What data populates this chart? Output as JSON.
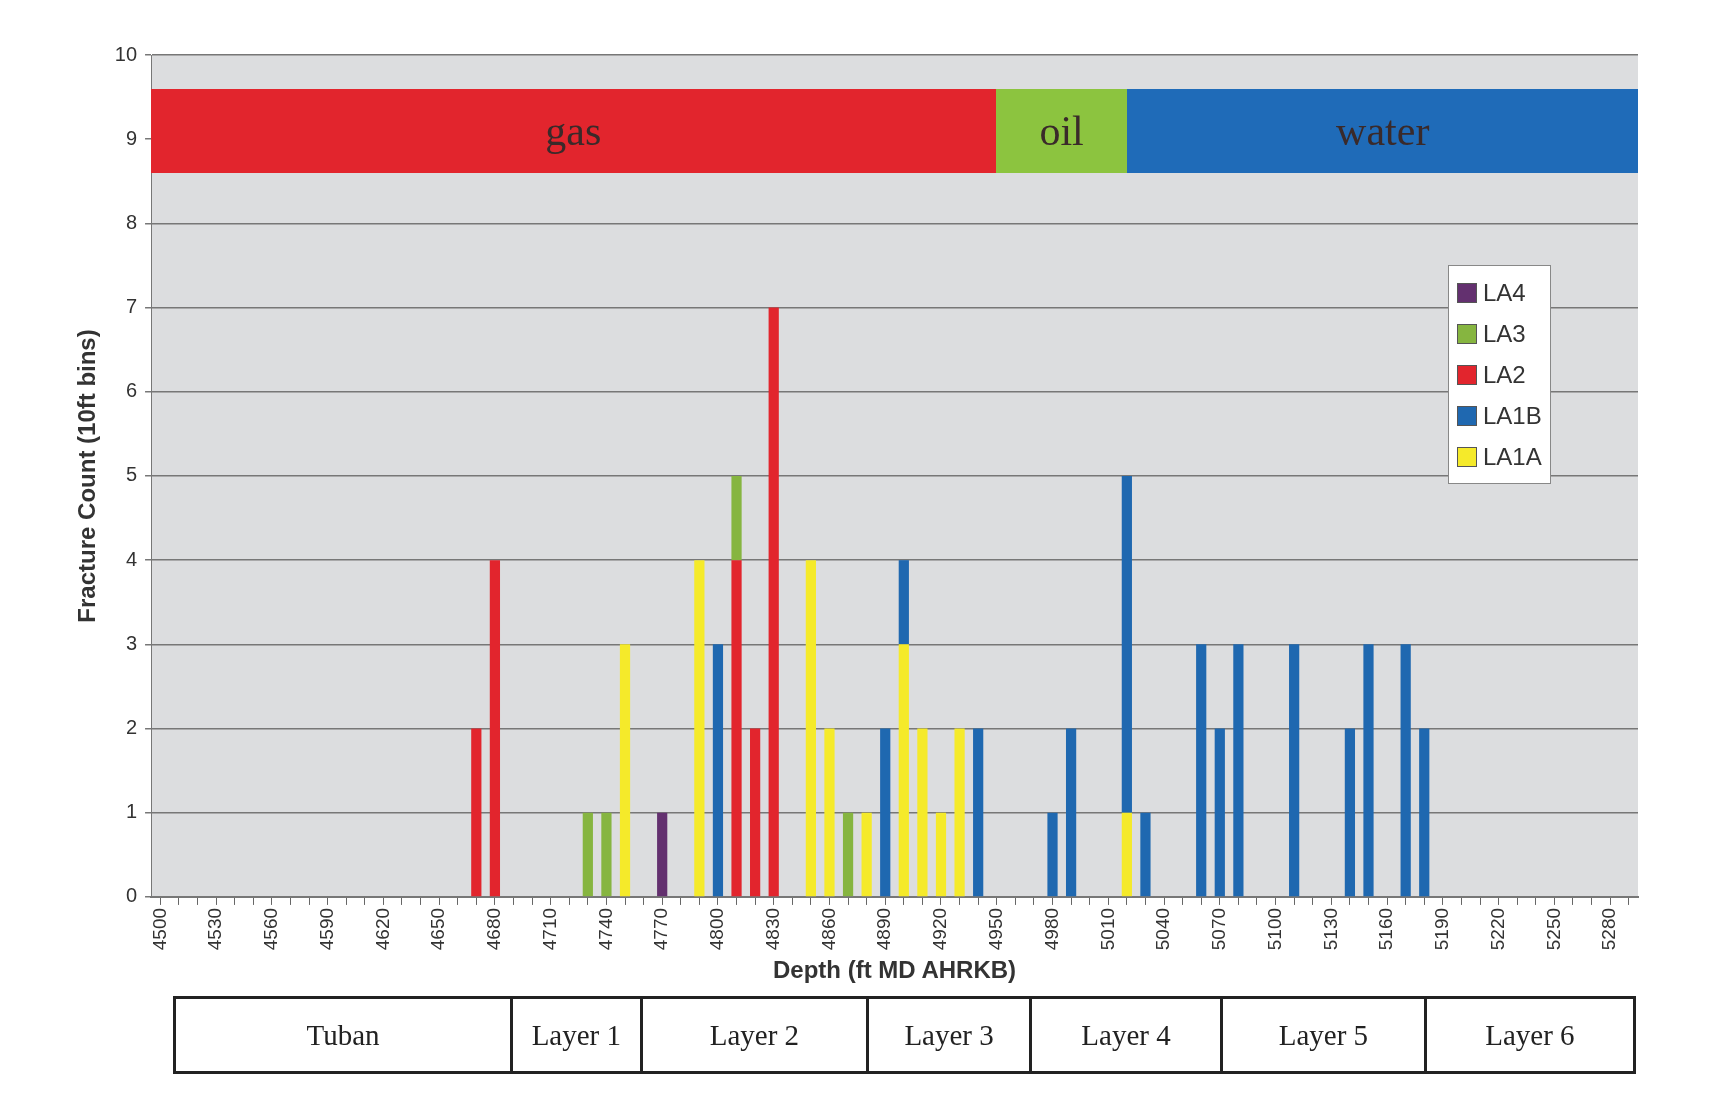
{
  "chart_data": {
    "type": "bar",
    "stacked": true,
    "xlabel": "Depth (ft MD AHRKB)",
    "ylabel": "Fracture Count (10ft bins)",
    "categories": [
      "4500",
      null,
      null,
      "4530",
      null,
      null,
      "4560",
      null,
      null,
      "4590",
      null,
      null,
      "4620",
      null,
      null,
      "4650",
      null,
      null,
      "4680",
      null,
      null,
      "4710",
      null,
      null,
      "4740",
      null,
      null,
      "4770",
      null,
      null,
      "4800",
      null,
      null,
      "4830",
      null,
      null,
      "4860",
      null,
      null,
      "4890",
      null,
      null,
      "4920",
      null,
      null,
      "4950",
      null,
      null,
      "4980",
      null,
      null,
      "5010",
      null,
      null,
      "5040",
      null,
      null,
      "5070",
      null,
      null,
      "5100",
      null,
      null,
      "5130",
      null,
      null,
      "5160",
      null,
      null,
      "5190",
      null,
      null,
      "5220",
      null,
      null,
      "5250",
      null,
      null,
      "5280",
      null
    ],
    "series": [
      {
        "name": "LA1A",
        "color": "#f5ea2a",
        "values": [
          null,
          null,
          null,
          null,
          null,
          null,
          null,
          null,
          null,
          null,
          null,
          null,
          null,
          null,
          null,
          null,
          null,
          null,
          null,
          null,
          null,
          null,
          null,
          null,
          null,
          3,
          null,
          null,
          null,
          4,
          null,
          null,
          null,
          null,
          null,
          4,
          2,
          null,
          1,
          null,
          3,
          2,
          1,
          2,
          null,
          null,
          null,
          null,
          null,
          null,
          null,
          null,
          1,
          null,
          null,
          null,
          null,
          null,
          null,
          null,
          null,
          null,
          null,
          null,
          null,
          null,
          null,
          null,
          null,
          null,
          null,
          null,
          null,
          null,
          null,
          null,
          null,
          null,
          null,
          null
        ]
      },
      {
        "name": "LA1B",
        "color": "#1f68b0",
        "values": [
          null,
          null,
          null,
          null,
          null,
          null,
          null,
          null,
          null,
          null,
          null,
          null,
          null,
          null,
          null,
          null,
          null,
          null,
          null,
          null,
          null,
          null,
          null,
          null,
          null,
          null,
          null,
          null,
          null,
          null,
          3,
          null,
          null,
          null,
          null,
          null,
          null,
          null,
          null,
          2,
          1,
          null,
          null,
          null,
          2,
          null,
          null,
          null,
          1,
          2,
          null,
          null,
          4,
          1,
          null,
          null,
          3,
          2,
          3,
          null,
          null,
          3,
          null,
          null,
          2,
          3,
          null,
          3,
          2,
          null,
          null,
          null,
          null,
          null,
          null,
          null,
          null,
          null,
          null,
          null
        ]
      },
      {
        "name": "LA2",
        "color": "#e2252d",
        "values": [
          null,
          null,
          null,
          null,
          null,
          null,
          null,
          null,
          null,
          null,
          null,
          null,
          null,
          null,
          null,
          null,
          null,
          2,
          4,
          null,
          null,
          null,
          null,
          null,
          null,
          null,
          null,
          null,
          null,
          null,
          null,
          4,
          2,
          7,
          null,
          null,
          null,
          null,
          null,
          null,
          null,
          null,
          null,
          null,
          null,
          null,
          null,
          null,
          null,
          null,
          null,
          null,
          null,
          null,
          null,
          null,
          null,
          null,
          null,
          null,
          null,
          null,
          null,
          null,
          null,
          null,
          null,
          null,
          null,
          null,
          null,
          null,
          null,
          null,
          null,
          null,
          null,
          null,
          null,
          null
        ]
      },
      {
        "name": "LA3",
        "color": "#86b540",
        "values": [
          null,
          null,
          null,
          null,
          null,
          null,
          null,
          null,
          null,
          null,
          null,
          null,
          null,
          null,
          null,
          null,
          null,
          null,
          null,
          null,
          null,
          null,
          null,
          1,
          1,
          null,
          null,
          null,
          null,
          null,
          null,
          1,
          null,
          null,
          null,
          null,
          null,
          1,
          null,
          null,
          null,
          null,
          null,
          null,
          null,
          null,
          null,
          null,
          null,
          null,
          null,
          null,
          null,
          null,
          null,
          null,
          null,
          null,
          null,
          null,
          null,
          null,
          null,
          null,
          null,
          null,
          null,
          null,
          null,
          null,
          null,
          null,
          null,
          null,
          null,
          null,
          null,
          null,
          null,
          null
        ]
      },
      {
        "name": "LA4",
        "color": "#63306f",
        "values": [
          null,
          null,
          null,
          null,
          null,
          null,
          null,
          null,
          null,
          null,
          null,
          null,
          null,
          null,
          null,
          null,
          null,
          null,
          null,
          null,
          null,
          null,
          null,
          null,
          null,
          null,
          null,
          1,
          null,
          null,
          null,
          null,
          null,
          null,
          null,
          null,
          null,
          null,
          null,
          null,
          null,
          null,
          null,
          null,
          null,
          null,
          null,
          null,
          null,
          null,
          null,
          null,
          null,
          null,
          null,
          null,
          null,
          null,
          null,
          null,
          null,
          null,
          null,
          null,
          null,
          null,
          null,
          null,
          null,
          null,
          null,
          null,
          null,
          null,
          null,
          null,
          null,
          null,
          null,
          null
        ]
      }
    ],
    "ylim": [
      0,
      10
    ],
    "yticks": [
      0,
      1,
      2,
      3,
      4,
      5,
      6,
      7,
      8,
      9,
      10
    ],
    "annotations": [
      "gas",
      "oil",
      "water",
      "Tuban",
      "Layer 1",
      "Layer 2",
      "Layer 3",
      "Layer 4",
      "Layer 5",
      "Layer 6"
    ],
    "grid": "y",
    "legend": "right"
  }
}
